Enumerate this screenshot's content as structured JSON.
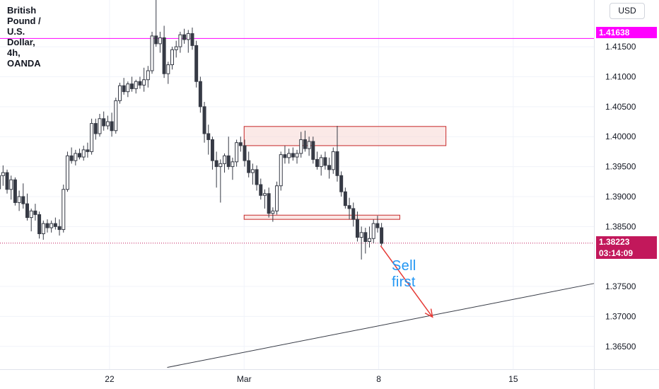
{
  "title": "British Pound / U.S. Dollar, 4h, OANDA",
  "currency_button": "USD",
  "level_label": "1.41638",
  "price_label": "1.38223",
  "countdown_label": "03:14:09",
  "annotation": "Sell first",
  "colors": {
    "up": "#ffffff",
    "down": "#363a45",
    "wick": "#363a45",
    "level_line": "#ff00ff",
    "price_line": "#c2185b",
    "zone_fill": "#f8d7d3",
    "zone_border": "#c62828",
    "arrow": "#e53935",
    "annotation": "#2196f3",
    "grid": "#f0f3fa"
  },
  "chart_data": {
    "type": "candlestick",
    "title": "British Pound / U.S. Dollar, 4h, OANDA",
    "y_ticks": [
      "1.41500",
      "1.41000",
      "1.40500",
      "1.40000",
      "1.39500",
      "1.39000",
      "1.38500",
      "1.37500",
      "1.37000",
      "1.36500"
    ],
    "y_tick_values": [
      1.415,
      1.41,
      1.405,
      1.4,
      1.395,
      1.39,
      1.385,
      1.375,
      1.37,
      1.365
    ],
    "ylim": [
      1.3612,
      1.4228
    ],
    "x_ticks": [
      {
        "label": "22",
        "day": 22
      },
      {
        "label": "Mar",
        "day": 29
      },
      {
        "label": "8",
        "day": 36
      },
      {
        "label": "15",
        "day": 43
      }
    ],
    "xlim_days": [
      16.3,
      47.2
    ],
    "horizontal_level": 1.41638,
    "last_price": 1.38223,
    "resistance_zone": {
      "day_start": 29,
      "day_end": 39.5,
      "low": 1.3985,
      "high": 1.4017
    },
    "support_zone": {
      "day_start": 29,
      "day_end": 37.1,
      "low": 1.3862,
      "high": 1.3869
    },
    "trendline": {
      "start": {
        "day": 25,
        "price": 1.3615
      },
      "end": {
        "day": 47.2,
        "price": 1.3755
      }
    },
    "arrow": {
      "from": {
        "day": 36.1,
        "price": 1.3818
      },
      "to": {
        "day": 38.8,
        "price": 1.3699
      }
    },
    "annotation": {
      "text": "Sell first",
      "day": 36.6,
      "price": 1.3773
    },
    "candles": [
      [
        1.3913,
        1.3948,
        1.3903,
        1.3935
      ],
      [
        1.3935,
        1.3952,
        1.3918,
        1.394
      ],
      [
        1.394,
        1.3945,
        1.3905,
        1.3912
      ],
      [
        1.3912,
        1.3935,
        1.3895,
        1.3928
      ],
      [
        1.3928,
        1.3932,
        1.3885,
        1.389
      ],
      [
        1.389,
        1.391,
        1.3876,
        1.39
      ],
      [
        1.39,
        1.3922,
        1.388,
        1.3888
      ],
      [
        1.3888,
        1.3905,
        1.386,
        1.3865
      ],
      [
        1.3865,
        1.388,
        1.3842,
        1.3876
      ],
      [
        1.3876,
        1.3888,
        1.386,
        1.387
      ],
      [
        1.387,
        1.3875,
        1.383,
        1.3838
      ],
      [
        1.3838,
        1.386,
        1.3828,
        1.3855
      ],
      [
        1.3855,
        1.3862,
        1.384,
        1.3848
      ],
      [
        1.3848,
        1.386,
        1.384,
        1.3855
      ],
      [
        1.3855,
        1.3865,
        1.3845,
        1.385
      ],
      [
        1.385,
        1.3862,
        1.3835,
        1.3845
      ],
      [
        1.3845,
        1.392,
        1.384,
        1.3912
      ],
      [
        1.3912,
        1.3975,
        1.3908,
        1.3968
      ],
      [
        1.3968,
        1.3982,
        1.3955,
        1.396
      ],
      [
        1.396,
        1.3978,
        1.3952,
        1.3972
      ],
      [
        1.3972,
        1.398,
        1.3962,
        1.3966
      ],
      [
        1.3966,
        1.3985,
        1.396,
        1.3978
      ],
      [
        1.3978,
        1.399,
        1.3965,
        1.3975
      ],
      [
        1.3975,
        1.403,
        1.397,
        1.4022
      ],
      [
        1.4022,
        1.403,
        1.3995,
        1.4005
      ],
      [
        1.4005,
        1.4038,
        1.4,
        1.403
      ],
      [
        1.403,
        1.4042,
        1.401,
        1.4018
      ],
      [
        1.4018,
        1.4035,
        1.4012,
        1.4025
      ],
      [
        1.4025,
        1.404,
        1.4,
        1.401
      ],
      [
        1.401,
        1.4065,
        1.4005,
        1.406
      ],
      [
        1.406,
        1.409,
        1.4055,
        1.4085
      ],
      [
        1.4085,
        1.4098,
        1.407,
        1.4075
      ],
      [
        1.4075,
        1.4092,
        1.4066,
        1.4088
      ],
      [
        1.4088,
        1.41,
        1.4075,
        1.408
      ],
      [
        1.408,
        1.4095,
        1.4072,
        1.4092
      ],
      [
        1.4092,
        1.41,
        1.408,
        1.4086
      ],
      [
        1.4086,
        1.4115,
        1.4075,
        1.4095
      ],
      [
        1.4095,
        1.4118,
        1.4082,
        1.411
      ],
      [
        1.411,
        1.4175,
        1.4105,
        1.4168
      ],
      [
        1.4168,
        1.4228,
        1.415,
        1.4155
      ],
      [
        1.4155,
        1.4175,
        1.414,
        1.4165
      ],
      [
        1.4165,
        1.4185,
        1.4098,
        1.4105
      ],
      [
        1.4105,
        1.4125,
        1.4088,
        1.412
      ],
      [
        1.412,
        1.415,
        1.4112,
        1.4145
      ],
      [
        1.4145,
        1.416,
        1.4132,
        1.415
      ],
      [
        1.415,
        1.4175,
        1.414,
        1.417
      ],
      [
        1.417,
        1.418,
        1.4155,
        1.4162
      ],
      [
        1.4162,
        1.4178,
        1.414,
        1.4172
      ],
      [
        1.4172,
        1.4182,
        1.4145,
        1.4152
      ],
      [
        1.4152,
        1.416,
        1.4082,
        1.4092
      ],
      [
        1.4092,
        1.41,
        1.404,
        1.405
      ],
      [
        1.405,
        1.4058,
        1.399,
        1.4005
      ],
      [
        1.4005,
        1.402,
        1.397,
        1.3995
      ],
      [
        1.3995,
        1.4,
        1.3945,
        1.396
      ],
      [
        1.396,
        1.3975,
        1.3915,
        1.395
      ],
      [
        1.395,
        1.3962,
        1.389,
        1.3955
      ],
      [
        1.3955,
        1.3972,
        1.394,
        1.3968
      ],
      [
        1.3968,
        1.4,
        1.3945,
        1.395
      ],
      [
        1.395,
        1.3965,
        1.3928,
        1.3958
      ],
      [
        1.3958,
        1.3995,
        1.395,
        1.399
      ],
      [
        1.399,
        1.4,
        1.3975,
        1.3985
      ],
      [
        1.3985,
        1.3995,
        1.395,
        1.396
      ],
      [
        1.396,
        1.3975,
        1.3932,
        1.394
      ],
      [
        1.394,
        1.3955,
        1.392,
        1.3945
      ],
      [
        1.3945,
        1.3952,
        1.391,
        1.392
      ],
      [
        1.392,
        1.393,
        1.3895,
        1.3902
      ],
      [
        1.3902,
        1.3912,
        1.388,
        1.3905
      ],
      [
        1.3905,
        1.3915,
        1.3865,
        1.3872
      ],
      [
        1.3872,
        1.3882,
        1.3858,
        1.3876
      ],
      [
        1.3876,
        1.3925,
        1.387,
        1.3918
      ],
      [
        1.3918,
        1.3975,
        1.391,
        1.397
      ],
      [
        1.397,
        1.3985,
        1.3955,
        1.3965
      ],
      [
        1.3965,
        1.398,
        1.3955,
        1.3972
      ],
      [
        1.3972,
        1.3982,
        1.396,
        1.3966
      ],
      [
        1.3966,
        1.3978,
        1.3955,
        1.3972
      ],
      [
        1.3972,
        1.4008,
        1.3965,
        1.3995
      ],
      [
        1.3995,
        1.401,
        1.3975,
        1.398
      ],
      [
        1.398,
        1.4,
        1.3968,
        1.3992
      ],
      [
        1.3992,
        1.4,
        1.3955,
        1.3962
      ],
      [
        1.3962,
        1.3975,
        1.3945,
        1.395
      ],
      [
        1.395,
        1.397,
        1.3935,
        1.3965
      ],
      [
        1.3965,
        1.3975,
        1.3945,
        1.3952
      ],
      [
        1.3952,
        1.3965,
        1.393,
        1.3945
      ],
      [
        1.3945,
        1.3982,
        1.3938,
        1.3975
      ],
      [
        1.3975,
        1.4018,
        1.3925,
        1.3935
      ],
      [
        1.3935,
        1.3942,
        1.39,
        1.3908
      ],
      [
        1.3908,
        1.3915,
        1.388,
        1.3885
      ],
      [
        1.3885,
        1.3898,
        1.3862,
        1.388
      ],
      [
        1.388,
        1.389,
        1.385,
        1.3862
      ],
      [
        1.3862,
        1.3875,
        1.3825,
        1.3832
      ],
      [
        1.3832,
        1.385,
        1.3795,
        1.384
      ],
      [
        1.384,
        1.3848,
        1.3805,
        1.3825
      ],
      [
        1.3825,
        1.385,
        1.3815,
        1.383
      ],
      [
        1.383,
        1.3862,
        1.3822,
        1.3855
      ],
      [
        1.3855,
        1.3868,
        1.384,
        1.3848
      ],
      [
        1.3848,
        1.3856,
        1.3818,
        1.3822
      ]
    ]
  }
}
